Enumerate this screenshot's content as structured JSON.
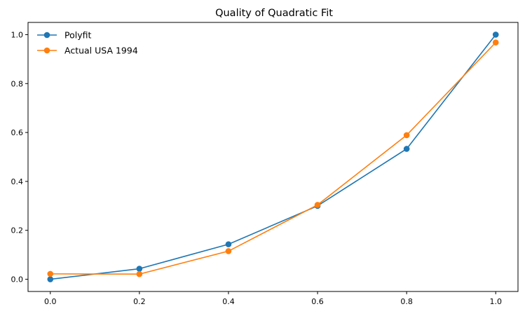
{
  "chart_data": {
    "type": "line",
    "title": "Quality of Quadratic Fit",
    "xlabel": "",
    "ylabel": "",
    "xlim": [
      -0.05,
      1.05
    ],
    "ylim": [
      -0.05,
      1.05
    ],
    "xticks": [
      0.0,
      0.2,
      0.4,
      0.6,
      0.8,
      1.0
    ],
    "xtick_labels": [
      "0.0",
      "0.2",
      "0.4",
      "0.6",
      "0.8",
      "1.0"
    ],
    "yticks": [
      0.0,
      0.2,
      0.4,
      0.6,
      0.8,
      1.0
    ],
    "ytick_labels": [
      "0.0",
      "0.2",
      "0.4",
      "0.6",
      "0.8",
      "1.0"
    ],
    "grid": false,
    "legend": "upper-left",
    "x": [
      0.0,
      0.2,
      0.4,
      0.6,
      0.8,
      1.0
    ],
    "series": [
      {
        "name": "Polyfit",
        "color": "#1f77b4",
        "marker": "circle",
        "values": [
          0.0,
          0.043,
          0.143,
          0.3,
          0.533,
          1.0
        ]
      },
      {
        "name": "Actual USA 1994",
        "color": "#ff7f0e",
        "marker": "circle",
        "values": [
          0.022,
          0.021,
          0.115,
          0.304,
          0.589,
          0.968
        ]
      }
    ]
  }
}
